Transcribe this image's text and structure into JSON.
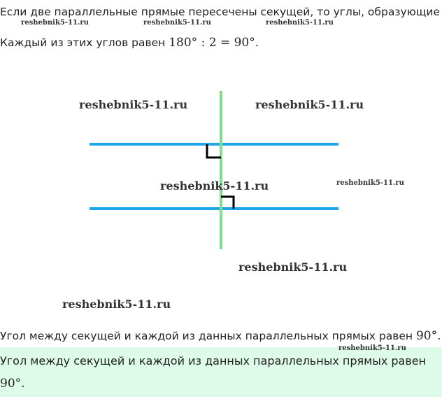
{
  "text": {
    "line1": "Если две параллельные прямые пересечены секущей, то углы, образующие",
    "line2_text": "Каждый из этих углов равен ",
    "line2_math": "180° : 2 = 90°.",
    "line3_text": "Угол между секущей и каждой из данных параллельных прямых равен ",
    "line3_math": "90°.",
    "answer_text": "Угол между секущей и каждой из данных параллельных прямых равен",
    "answer_math": "90°."
  },
  "watermark": "reshebnik5-11.ru",
  "colors": {
    "parallel_lines": "#1ea7e8",
    "secant": "#7ee08a",
    "right_angle": "#000000",
    "answer_bg": "#ddfbe8"
  }
}
